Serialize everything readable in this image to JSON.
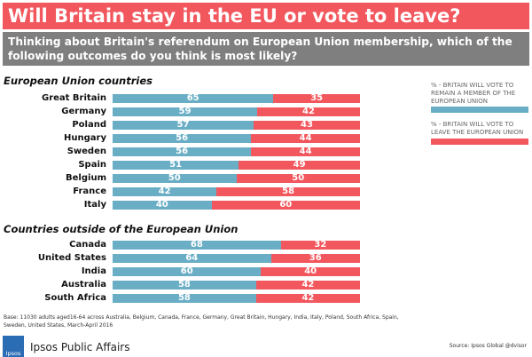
{
  "chart_data": {
    "type": "bar",
    "stacked": true,
    "title": "Will Britain stay in the EU or vote to leave?",
    "subtitle": "Thinking about Britain's referendum on European Union membership, which of the following outcomes do you think is most likely?",
    "xlim": [
      0,
      100
    ],
    "legend_position": "right",
    "series_names": [
      "% - BRITAIN WILL VOTE TO REMAIN A MEMBER OF THE EUROPEAN UNION",
      "% - BRITAIN WILL VOTE TO LEAVE THE EUROPEAN UNION"
    ],
    "colors": [
      "#6aaec6",
      "#f2575e"
    ],
    "groups": [
      {
        "name": "European Union countries",
        "categories": [
          "Great Britain",
          "Germany",
          "Poland",
          "Hungary",
          "Sweden",
          "Spain",
          "Belgium",
          "France",
          "Italy"
        ],
        "remain": [
          65,
          59,
          57,
          56,
          56,
          51,
          50,
          42,
          40
        ],
        "leave": [
          35,
          42,
          43,
          44,
          44,
          49,
          50,
          58,
          60
        ]
      },
      {
        "name": "Countries outside of the European Union",
        "categories": [
          "Canada",
          "United States",
          "India",
          "Australia",
          "South Africa"
        ],
        "remain": [
          68,
          64,
          60,
          58,
          58
        ],
        "leave": [
          32,
          36,
          40,
          42,
          42
        ]
      }
    ]
  },
  "footer": {
    "base": "Base: 11030 adults aged16-64 across  Australia, Belgium, Canada, France, Germany, Great Britain, Hungary, India, Italy, Poland, South Africa, Spain, Sweden, United States, March-April 2016",
    "brand": "Ipsos Public Affairs",
    "logo": "Ipsos",
    "source": "Source: Ipsos Global @dvisor"
  }
}
